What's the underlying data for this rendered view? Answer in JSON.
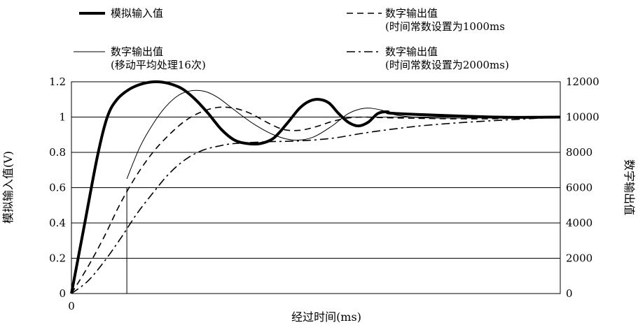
{
  "chart_data": {
    "type": "line",
    "xlabel": "经过时间(ms)",
    "x_ticks": [
      "0"
    ],
    "y_left": {
      "label": "模拟输入值(V)",
      "ticks": [
        "0",
        "0.2",
        "0.4",
        "0.6",
        "0.8",
        "1",
        "1.2"
      ],
      "lim": [
        0,
        1.2
      ]
    },
    "y_right": {
      "label": "数字输出值",
      "ticks": [
        "0",
        "2000",
        "4000",
        "6000",
        "8000",
        "10000",
        "12000"
      ],
      "lim": [
        0,
        12000
      ]
    },
    "grid": "horizontal",
    "legend": [
      {
        "line1": "模拟输入值",
        "line2": "",
        "style": "thick"
      },
      {
        "line1": "数字输出值",
        "line2": "(时间常数设置为1000ms",
        "style": "dash"
      },
      {
        "line1": "数字输出值",
        "line2": "(移动平均处理16次)",
        "style": "thin"
      },
      {
        "line1": "数字输出值",
        "line2": "(时间常数设置为2000ms)",
        "style": "dashdot"
      }
    ],
    "marker_x": 17,
    "series": [
      {
        "name": "模拟输入值",
        "axis": "left",
        "style": "thick",
        "points": [
          [
            0,
            0
          ],
          [
            4,
            0.39
          ],
          [
            8,
            0.78
          ],
          [
            11,
            1.0
          ],
          [
            14,
            1.1
          ],
          [
            18,
            1.16
          ],
          [
            22,
            1.19
          ],
          [
            26,
            1.2
          ],
          [
            30,
            1.19
          ],
          [
            34,
            1.16
          ],
          [
            38,
            1.1
          ],
          [
            42,
            1.02
          ],
          [
            46,
            0.93
          ],
          [
            50,
            0.87
          ],
          [
            54,
            0.85
          ],
          [
            58,
            0.85
          ],
          [
            62,
            0.88
          ],
          [
            66,
            0.96
          ],
          [
            70,
            1.05
          ],
          [
            73,
            1.09
          ],
          [
            76,
            1.1
          ],
          [
            79,
            1.08
          ],
          [
            82,
            1.02
          ],
          [
            85,
            0.97
          ],
          [
            88,
            0.95
          ],
          [
            91,
            0.97
          ],
          [
            94,
            1.02
          ],
          [
            97,
            1.03
          ],
          [
            100,
            1.02
          ],
          [
            130,
            1.0
          ],
          [
            150,
            1.0
          ]
        ]
      },
      {
        "name": "数字输出值 (移动平均处理16次)",
        "axis": "right",
        "style": "thin",
        "points": [
          [
            17,
            6500
          ],
          [
            21,
            8300
          ],
          [
            25,
            9600
          ],
          [
            29,
            10600
          ],
          [
            33,
            11250
          ],
          [
            37,
            11500
          ],
          [
            41,
            11450
          ],
          [
            45,
            11100
          ],
          [
            50,
            10400
          ],
          [
            56,
            9600
          ],
          [
            62,
            9000
          ],
          [
            68,
            8700
          ],
          [
            74,
            8850
          ],
          [
            80,
            9500
          ],
          [
            85,
            10200
          ],
          [
            90,
            10500
          ],
          [
            95,
            10400
          ],
          [
            100,
            10100
          ],
          [
            110,
            9950
          ],
          [
            125,
            9950
          ],
          [
            150,
            10000
          ]
        ]
      },
      {
        "name": "数字输出值 (时间常数设置为1000ms",
        "axis": "right",
        "style": "dash",
        "points": [
          [
            0,
            0
          ],
          [
            5,
            1500
          ],
          [
            10,
            3200
          ],
          [
            15,
            5100
          ],
          [
            20,
            6700
          ],
          [
            25,
            8000
          ],
          [
            30,
            9000
          ],
          [
            35,
            9800
          ],
          [
            40,
            10300
          ],
          [
            45,
            10550
          ],
          [
            50,
            10500
          ],
          [
            55,
            10200
          ],
          [
            60,
            9700
          ],
          [
            65,
            9300
          ],
          [
            70,
            9250
          ],
          [
            75,
            9450
          ],
          [
            80,
            9750
          ],
          [
            85,
            9950
          ],
          [
            90,
            10000
          ],
          [
            100,
            9950
          ],
          [
            125,
            9900
          ],
          [
            150,
            10000
          ]
        ]
      },
      {
        "name": "数字输出值 (时间常数设置为2000ms)",
        "axis": "right",
        "style": "dashdot",
        "points": [
          [
            0,
            0
          ],
          [
            5,
            700
          ],
          [
            10,
            1800
          ],
          [
            15,
            3100
          ],
          [
            20,
            4500
          ],
          [
            25,
            5700
          ],
          [
            30,
            6800
          ],
          [
            35,
            7600
          ],
          [
            40,
            8100
          ],
          [
            45,
            8350
          ],
          [
            50,
            8500
          ],
          [
            60,
            8600
          ],
          [
            70,
            8650
          ],
          [
            80,
            8800
          ],
          [
            90,
            9100
          ],
          [
            100,
            9350
          ],
          [
            110,
            9550
          ],
          [
            125,
            9750
          ],
          [
            150,
            10000
          ]
        ]
      }
    ]
  }
}
